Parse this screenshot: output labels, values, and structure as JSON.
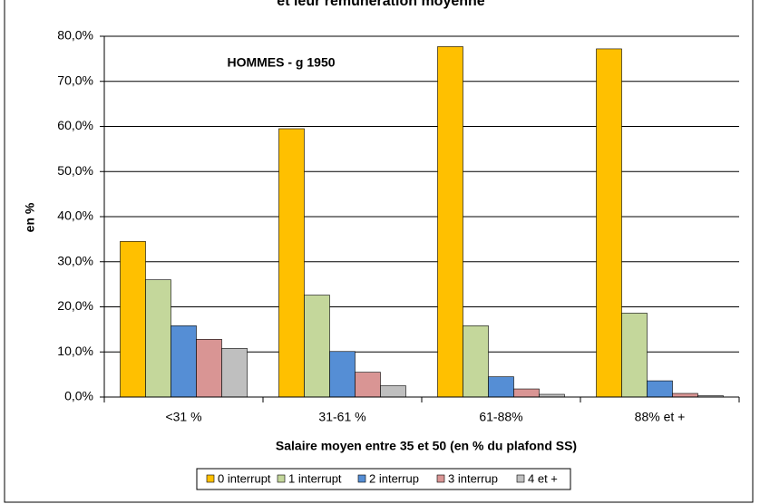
{
  "chart_data": {
    "type": "bar",
    "title": "et leur rémunération moyenne",
    "annotation": "HOMMES - g 1950",
    "x_label": "Salaire moyen entre 35 et 50 (en % du plafond SS)",
    "y_label": "en %",
    "categories": [
      "<31 %",
      "31-61 %",
      "61-88%",
      "88% et +"
    ],
    "series": [
      {
        "name": "0 interrupt",
        "color": "#ffc000",
        "values": [
          34.5,
          59.5,
          77.7,
          77.2
        ]
      },
      {
        "name": "1 interrupt",
        "color": "#c4d79b",
        "values": [
          26.0,
          22.6,
          15.8,
          18.6
        ]
      },
      {
        "name": "2 interrup",
        "color": "#558ed5",
        "values": [
          15.8,
          10.1,
          4.5,
          3.6
        ]
      },
      {
        "name": "3 interrup",
        "color": "#d99594",
        "values": [
          12.8,
          5.5,
          1.8,
          0.8
        ]
      },
      {
        "name": "4 et +",
        "color": "#bfbfbf",
        "values": [
          10.8,
          2.5,
          0.6,
          0.3
        ]
      }
    ],
    "ylim": [
      0,
      80
    ],
    "yticks": [
      {
        "value": 0,
        "label": "0,0%"
      },
      {
        "value": 10,
        "label": "10,0%"
      },
      {
        "value": 20,
        "label": "20,0%"
      },
      {
        "value": 30,
        "label": "30,0%"
      },
      {
        "value": 40,
        "label": "40,0%"
      },
      {
        "value": 50,
        "label": "50,0%"
      },
      {
        "value": 60,
        "label": "60,0%"
      },
      {
        "value": 70,
        "label": "70,0%"
      },
      {
        "value": 80,
        "label": "80,0%"
      }
    ],
    "grid": true,
    "legend": "bottom"
  }
}
